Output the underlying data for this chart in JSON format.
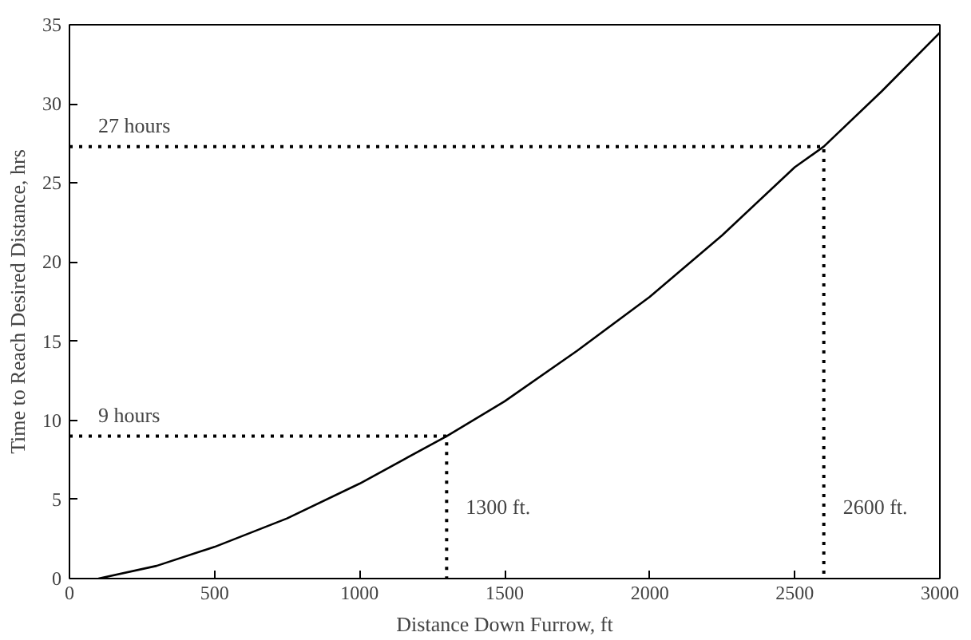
{
  "chart_data": {
    "type": "line",
    "xlabel": "Distance Down Furrow, ft",
    "ylabel": "Time to Reach Desired Distance, hrs",
    "xlim": [
      0,
      3000
    ],
    "ylim": [
      0,
      35
    ],
    "xticks": [
      0,
      500,
      1000,
      1500,
      2000,
      2500,
      3000
    ],
    "yticks": [
      0,
      5,
      10,
      15,
      20,
      25,
      30,
      35
    ],
    "grid": false,
    "series": [
      {
        "color": "#000000",
        "line_style": "solid",
        "x": [
          100,
          300,
          500,
          750,
          1000,
          1300,
          1500,
          1750,
          2000,
          2250,
          2500,
          2600,
          2800,
          3000
        ],
        "values": [
          0,
          0.8,
          2,
          3.8,
          6,
          9,
          11.2,
          14.4,
          17.8,
          21.7,
          26,
          27.3,
          30.8,
          34.5
        ]
      },
      {
        "color": "#000000",
        "line_style": "dotted",
        "x": [
          0,
          1300,
          1300
        ],
        "values": [
          9,
          9,
          0
        ]
      },
      {
        "color": "#000000",
        "line_style": "dotted",
        "x": [
          0,
          2600,
          2600
        ],
        "values": [
          27.3,
          27.3,
          0
        ]
      }
    ],
    "annotations": [
      "9 hours",
      "27 hours",
      "1300 ft.",
      "2600 ft."
    ]
  }
}
